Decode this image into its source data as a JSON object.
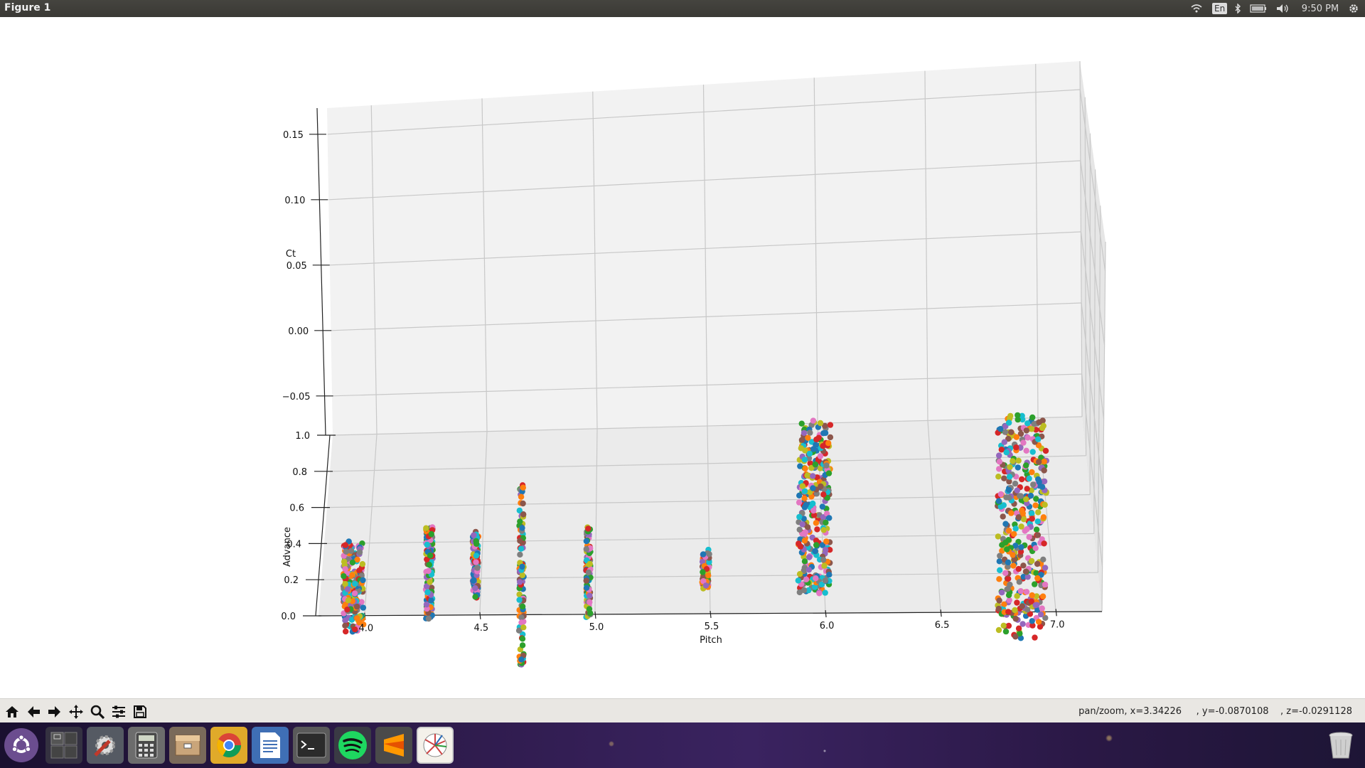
{
  "window": {
    "title": "Figure 1"
  },
  "tray": {
    "lang": "En",
    "time": "9:50 PM",
    "icons": [
      "wifi-icon",
      "bluetooth-icon",
      "battery-icon",
      "volume-icon",
      "gear-icon"
    ]
  },
  "chart_data": {
    "type": "scatter",
    "projection": "3d",
    "xlabel": "Pitch",
    "ylabel": "Advance",
    "zlabel": "Ct",
    "x_ticks": [
      "4.0",
      "4.5",
      "5.0",
      "5.5",
      "6.0",
      "6.5",
      "7.0"
    ],
    "y_ticks": [
      "0.0",
      "0.2",
      "0.4",
      "0.6",
      "0.8",
      "1.0"
    ],
    "z_ticks": [
      "0.15",
      "0.10",
      "0.05",
      "0.00",
      "−0.05"
    ],
    "xlim": [
      3.8,
      7.2
    ],
    "ylim": [
      0.0,
      1.0
    ],
    "zlim": [
      -0.08,
      0.17
    ],
    "grid": true,
    "series": [
      {
        "x": 3.95,
        "z_range": [
          -0.095,
          -0.03
        ],
        "spread": 0.35
      },
      {
        "x": 4.28,
        "z_range": [
          -0.085,
          -0.02
        ],
        "spread": 0.12
      },
      {
        "x": 4.48,
        "z_range": [
          -0.07,
          -0.025
        ],
        "spread": 0.1
      },
      {
        "x": 4.68,
        "z_range": [
          -0.12,
          0.01
        ],
        "spread": 0.08
      },
      {
        "x": 4.97,
        "z_range": [
          -0.085,
          -0.02
        ],
        "spread": 0.08
      },
      {
        "x": 5.48,
        "z_range": [
          -0.065,
          -0.04
        ],
        "spread": 0.12
      },
      {
        "x": 5.95,
        "z_range": [
          -0.07,
          0.05
        ],
        "spread": 0.55
      },
      {
        "x": 6.85,
        "z_range": [
          -0.1,
          0.05
        ],
        "spread": 0.85
      }
    ],
    "colors": [
      "#1f77b4",
      "#ff7f0e",
      "#2ca02c",
      "#d62728",
      "#9467bd",
      "#8c564b",
      "#e377c2",
      "#7f7f7f",
      "#bcbd22",
      "#17becf"
    ]
  },
  "toolbar": {
    "buttons": [
      "home-icon",
      "back-icon",
      "forward-icon",
      "pan-icon",
      "zoom-icon",
      "configure-icon",
      "save-icon"
    ],
    "status": "pan/zoom, x=3.34226     , y=-0.0870108    , z=-0.0291128"
  },
  "launcher": {
    "apps": [
      "ubuntu-logo-icon",
      "workspace-switcher-icon",
      "system-settings-icon",
      "calculator-icon",
      "file-archive-icon",
      "chrome-icon",
      "writer-icon",
      "terminal-icon",
      "spotify-icon",
      "sublime-text-icon",
      "figure-app-icon",
      "trash-icon"
    ]
  }
}
